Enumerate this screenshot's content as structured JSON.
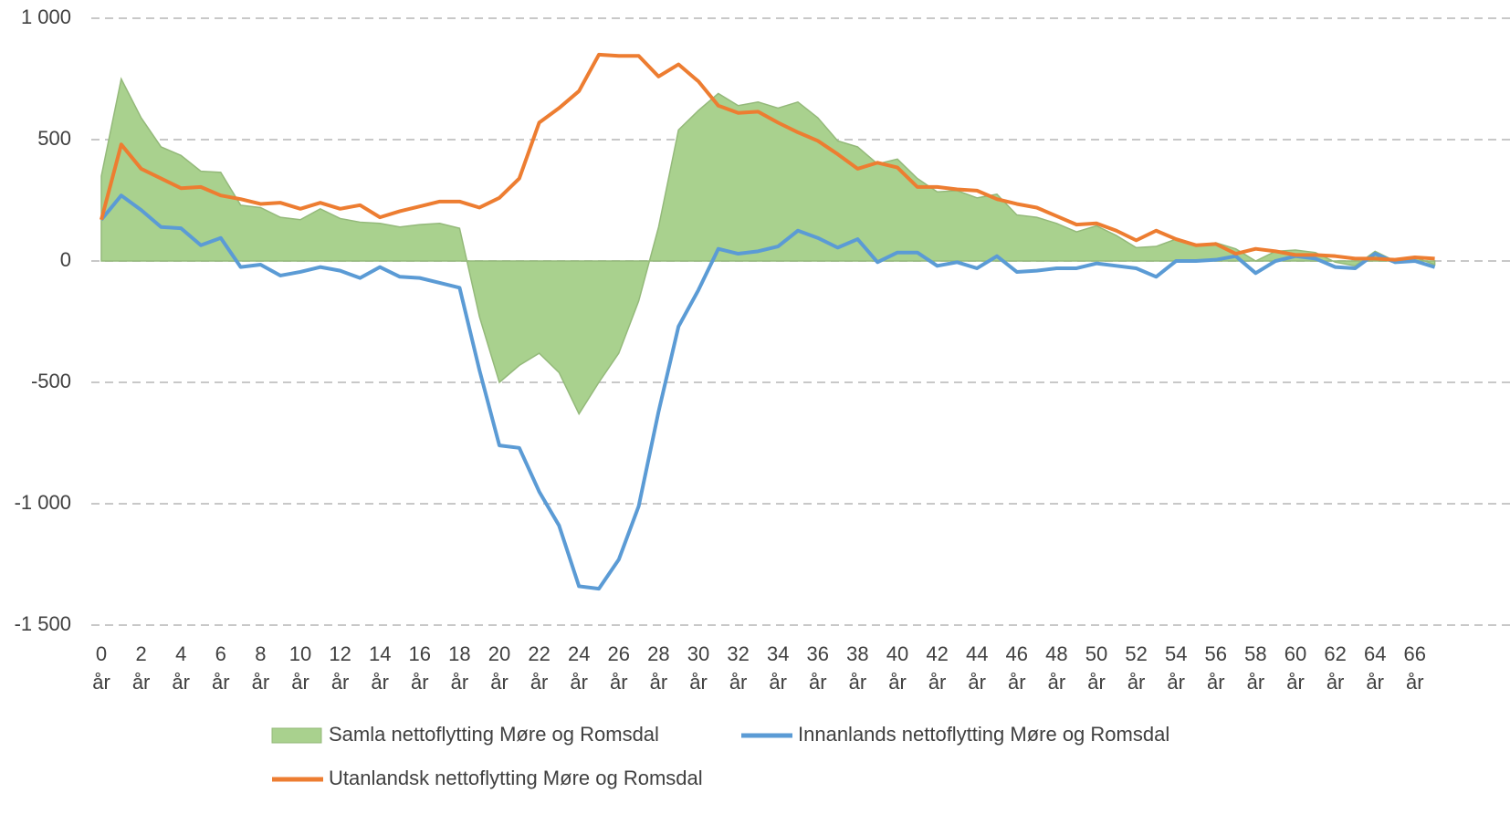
{
  "chart_data": {
    "type": "line",
    "categories": [
      "0 år",
      null,
      "2 år",
      null,
      "4 år",
      null,
      "6 år",
      null,
      "8 år",
      null,
      "10 år",
      null,
      "12 år",
      null,
      "14 år",
      null,
      "16 år",
      null,
      "18 år",
      null,
      "20 år",
      null,
      "22 år",
      null,
      "24 år",
      null,
      "26 år",
      null,
      "28 år",
      null,
      "30 år",
      null,
      "32 år",
      null,
      "34 år",
      null,
      "36 år",
      null,
      "38 år",
      null,
      "40 år",
      null,
      "42 år",
      null,
      "44 år",
      null,
      "46 år",
      null,
      "48 år",
      null,
      "50 år",
      null,
      "52 år",
      null,
      "54 år",
      null,
      "56 år",
      null,
      "58 år",
      null,
      "60 år",
      null,
      "62 år",
      null,
      "64 år",
      null,
      "66 år",
      null
    ],
    "series": [
      {
        "name": "Samla nettoflytting Møre og Romsdal",
        "kind": "area",
        "color": "#a9d18e",
        "values": [
          350,
          750,
          590,
          470,
          435,
          370,
          365,
          230,
          220,
          180,
          170,
          215,
          175,
          160,
          155,
          140,
          150,
          155,
          135,
          -230,
          -500,
          -430,
          -380,
          -460,
          -630,
          -500,
          -380,
          -165,
          140,
          540,
          620,
          690,
          640,
          655,
          630,
          655,
          590,
          495,
          470,
          400,
          420,
          340,
          285,
          290,
          260,
          275,
          190,
          180,
          155,
          120,
          145,
          105,
          55,
          60,
          90,
          65,
          75,
          50,
          0,
          40,
          45,
          35,
          -5,
          -20,
          40,
          0,
          15,
          -15
        ]
      },
      {
        "name": "Innanlands nettoflytting Møre og Romsdal",
        "kind": "line",
        "color": "#5b9bd5",
        "values": [
          170,
          270,
          210,
          140,
          135,
          65,
          95,
          -25,
          -15,
          -60,
          -45,
          -25,
          -40,
          -70,
          -25,
          -65,
          -70,
          -90,
          -110,
          -450,
          -760,
          -770,
          -950,
          -1090,
          -1340,
          -1350,
          -1230,
          -1010,
          -620,
          -270,
          -120,
          50,
          30,
          40,
          60,
          125,
          95,
          55,
          90,
          -5,
          35,
          35,
          -20,
          -5,
          -30,
          20,
          -45,
          -40,
          -30,
          -30,
          -10,
          -20,
          -30,
          -65,
          0,
          0,
          5,
          20,
          -50,
          0,
          20,
          10,
          -25,
          -30,
          30,
          -5,
          0,
          -25
        ]
      },
      {
        "name": "Utanlandsk nettoflytting Møre og Romsdal",
        "kind": "line",
        "color": "#ed7d31",
        "values": [
          170,
          480,
          380,
          340,
          300,
          305,
          270,
          255,
          235,
          240,
          215,
          240,
          215,
          230,
          180,
          205,
          225,
          245,
          245,
          220,
          260,
          340,
          570,
          630,
          700,
          850,
          845,
          845,
          760,
          810,
          740,
          640,
          610,
          615,
          570,
          530,
          495,
          440,
          380,
          405,
          385,
          305,
          305,
          295,
          290,
          255,
          235,
          220,
          185,
          150,
          155,
          125,
          85,
          125,
          90,
          65,
          70,
          30,
          50,
          40,
          25,
          25,
          20,
          10,
          10,
          5,
          15,
          10
        ]
      }
    ],
    "ylim": [
      -1500,
      1000
    ],
    "yticks": [
      {
        "value": 1000,
        "label": "1 000"
      },
      500,
      0,
      -500,
      {
        "value": -1000,
        "label": "-1 000"
      },
      {
        "value": -1500,
        "label": "-1 500"
      }
    ],
    "grid": true
  }
}
